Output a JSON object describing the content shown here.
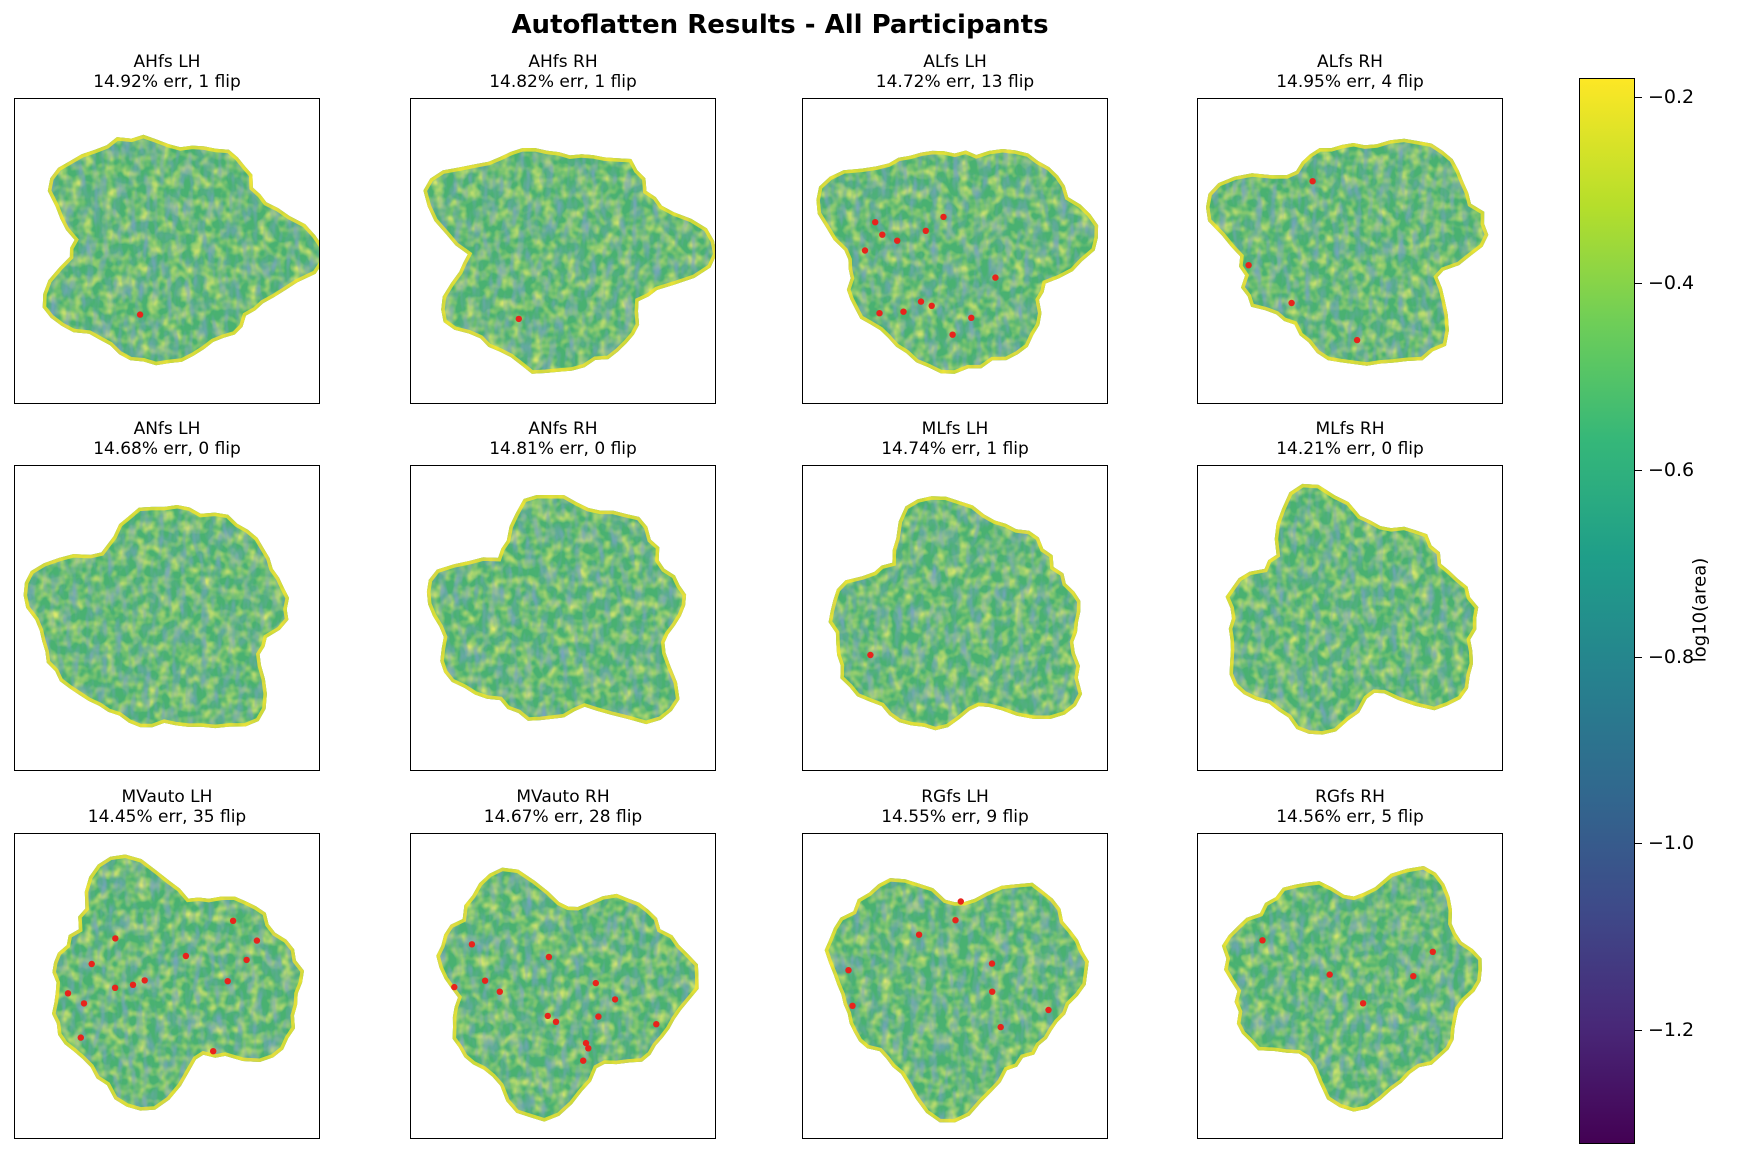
{
  "title": "Autoflatten Results - All Participants",
  "colors": {
    "viridis": [
      "#440154",
      "#482878",
      "#3e4a89",
      "#31688e",
      "#26828e",
      "#1f9e89",
      "#35b779",
      "#6ece58",
      "#b5de2b",
      "#fde725"
    ],
    "flip_marker": "#e8231c"
  },
  "chart_data": {
    "type": "heatmap",
    "grid": [
      3,
      4
    ],
    "colorbar": {
      "label": "log10(area)",
      "range": [
        -1.32,
        -0.18
      ],
      "ticks": [
        "−0.2",
        "−0.4",
        "−0.6",
        "−0.8",
        "−1.0",
        "−1.2"
      ],
      "tick_values": [
        -0.2,
        -0.4,
        -0.6,
        -0.8,
        -1.0,
        -1.2
      ]
    },
    "panels": [
      {
        "subject": "AHfs",
        "hemi": "LH",
        "error_pct": 14.92,
        "flips": 1,
        "line1": "AHfs LH",
        "line2": "14.92% err, 1 flip"
      },
      {
        "subject": "AHfs",
        "hemi": "RH",
        "error_pct": 14.82,
        "flips": 1,
        "line1": "AHfs RH",
        "line2": "14.82% err, 1 flip"
      },
      {
        "subject": "ALfs",
        "hemi": "LH",
        "error_pct": 14.72,
        "flips": 13,
        "line1": "ALfs LH",
        "line2": "14.72% err, 13 flip"
      },
      {
        "subject": "ALfs",
        "hemi": "RH",
        "error_pct": 14.95,
        "flips": 4,
        "line1": "ALfs RH",
        "line2": "14.95% err, 4 flip"
      },
      {
        "subject": "ANfs",
        "hemi": "LH",
        "error_pct": 14.68,
        "flips": 0,
        "line1": "ANfs LH",
        "line2": "14.68% err, 0 flip"
      },
      {
        "subject": "ANfs",
        "hemi": "RH",
        "error_pct": 14.81,
        "flips": 0,
        "line1": "ANfs RH",
        "line2": "14.81% err, 0 flip"
      },
      {
        "subject": "MLfs",
        "hemi": "LH",
        "error_pct": 14.74,
        "flips": 1,
        "line1": "MLfs LH",
        "line2": "14.74% err, 1 flip"
      },
      {
        "subject": "MLfs",
        "hemi": "RH",
        "error_pct": 14.21,
        "flips": 0,
        "line1": "MLfs RH",
        "line2": "14.21% err, 0 flip"
      },
      {
        "subject": "MVauto",
        "hemi": "LH",
        "error_pct": 14.45,
        "flips": 35,
        "line1": "MVauto LH",
        "line2": "14.45% err, 35 flip"
      },
      {
        "subject": "MVauto",
        "hemi": "RH",
        "error_pct": 14.67,
        "flips": 28,
        "line1": "MVauto RH",
        "line2": "14.67% err, 28 flip"
      },
      {
        "subject": "RGfs",
        "hemi": "LH",
        "error_pct": 14.55,
        "flips": 9,
        "line1": "RGfs LH",
        "line2": "14.55% err, 9 flip"
      },
      {
        "subject": "RGfs",
        "hemi": "RH",
        "error_pct": 14.56,
        "flips": 5,
        "line1": "RGfs RH",
        "line2": "14.56% err, 5 flip"
      }
    ]
  }
}
